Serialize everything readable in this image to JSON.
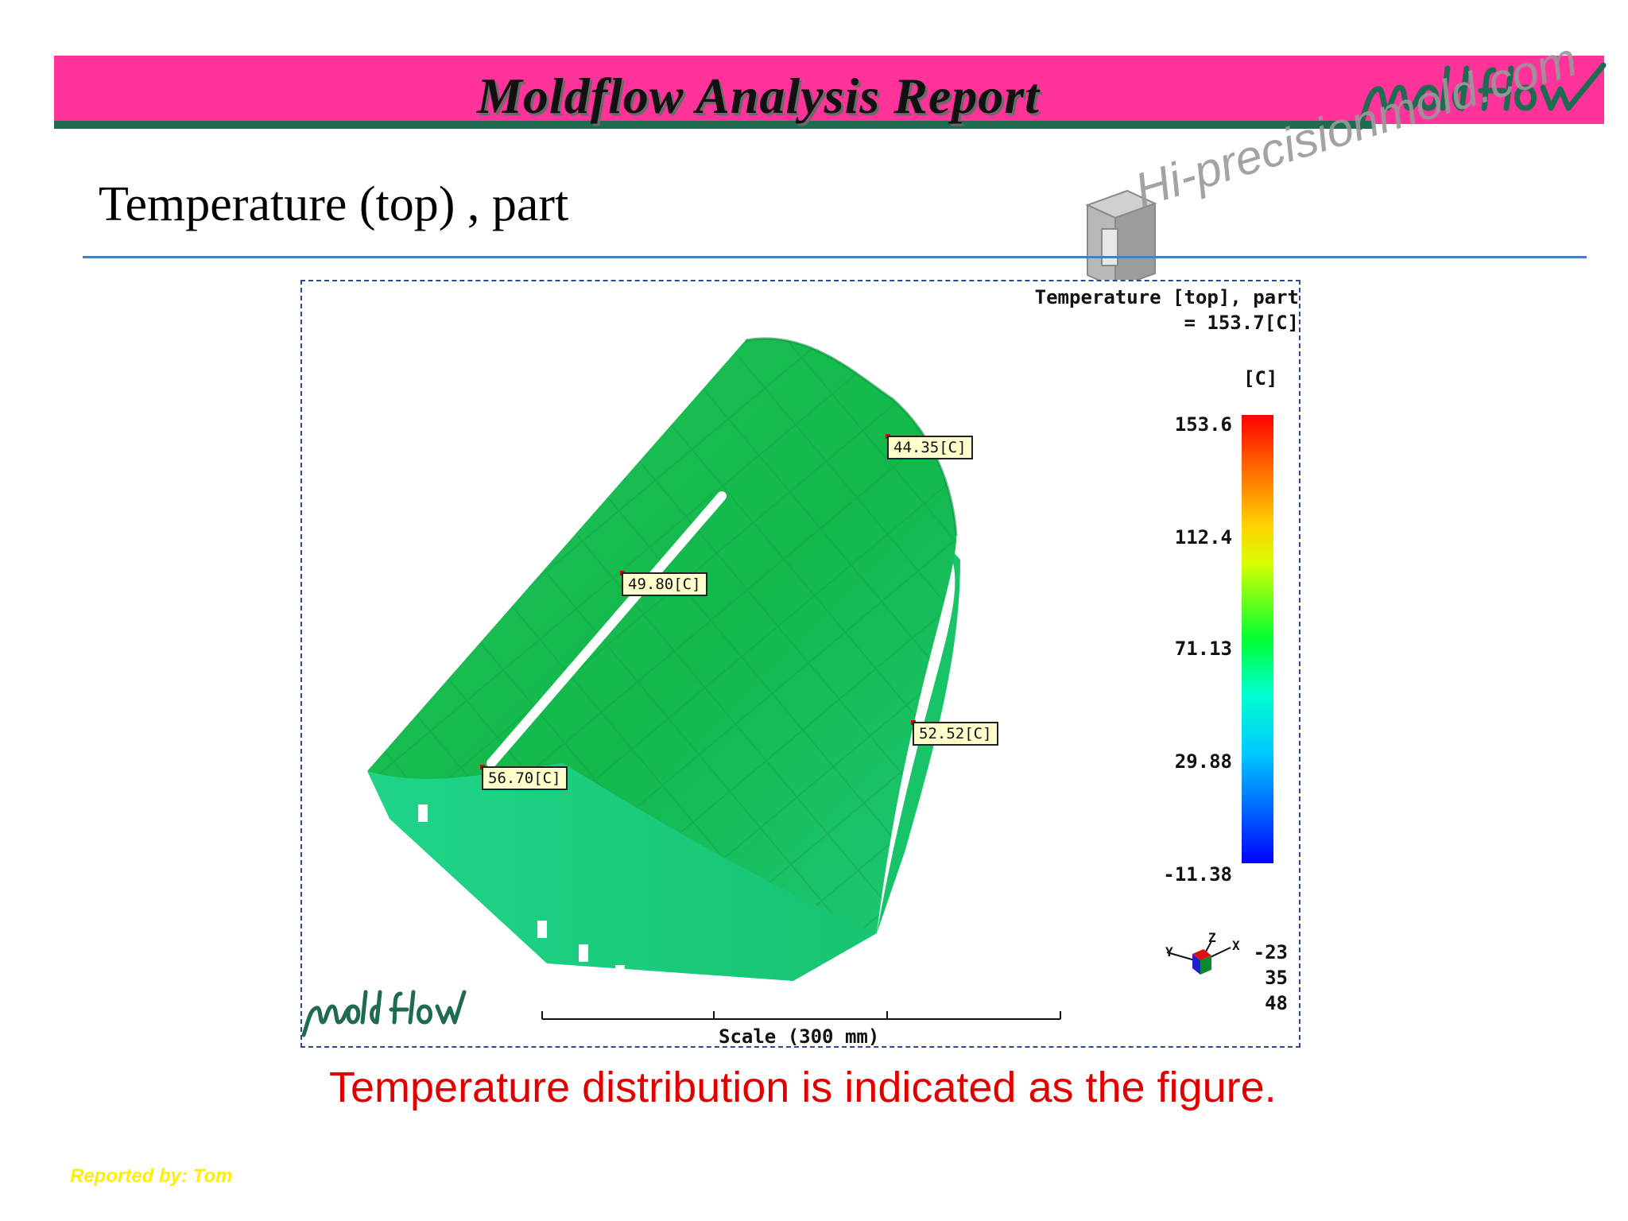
{
  "header": {
    "title": "Moldflow Analysis Report",
    "logo": "moldflow-logo",
    "band_color": "#ff3399",
    "rule_color": "#1f6b52"
  },
  "watermark": {
    "text": "Hi-precisionmold.com",
    "icon": "mold-cube-icon"
  },
  "slide": {
    "title": "Temperature (top) , part",
    "caption": "Temperature distribution is indicated as the figure.",
    "reporter": "Reported by: Tom"
  },
  "plot": {
    "title_line1": "Temperature [top], part",
    "title_line2": "= 153.7[C]",
    "unit": "[C]",
    "colorbar_ticks": [
      "153.6",
      "112.4",
      "71.13",
      "29.88",
      "-11.38"
    ],
    "probes": [
      {
        "label": "44.35[C]"
      },
      {
        "label": "49.80[C]"
      },
      {
        "label": "52.52[C]"
      },
      {
        "label": "56.70[C]"
      }
    ],
    "scale_label": "Scale (300 mm)",
    "view_angles": [
      "-23",
      "35",
      "48"
    ],
    "triad_axes": [
      "Y",
      "Z",
      "X"
    ],
    "logo": "moldflow-logo"
  }
}
